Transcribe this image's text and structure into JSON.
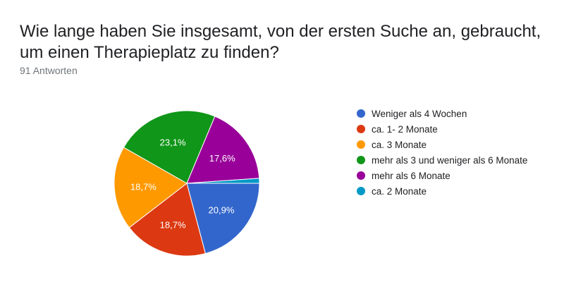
{
  "question": {
    "title": "Wie lange haben Sie insgesamt, von der ersten Suche an, gebraucht, um einen Therapieplatz zu finden?",
    "responses": "91 Antworten"
  },
  "chart_data": {
    "type": "pie",
    "title": "Wie lange haben Sie insgesamt, von der ersten Suche an, gebraucht, um einen Therapieplatz zu finden?",
    "slices": [
      {
        "label": "Weniger als 4 Wochen",
        "value": 19,
        "percent_label": "20,9%",
        "color": "#3366cc"
      },
      {
        "label": "ca. 1- 2 Monate",
        "value": 17,
        "percent_label": "18,7%",
        "color": "#dc3912"
      },
      {
        "label": "ca. 3 Monate",
        "value": 17,
        "percent_label": "18,7%",
        "color": "#ff9900"
      },
      {
        "label": "mehr als 3 und weniger als 6 Monate",
        "value": 21,
        "percent_label": "23,1%",
        "color": "#109618"
      },
      {
        "label": "mehr als 6 Monate",
        "value": 16,
        "percent_label": "17,6%",
        "color": "#990099"
      },
      {
        "label": "ca. 2 Monate",
        "value": 1,
        "percent_label": "",
        "color": "#0099c6"
      }
    ],
    "legend_position": "right"
  }
}
